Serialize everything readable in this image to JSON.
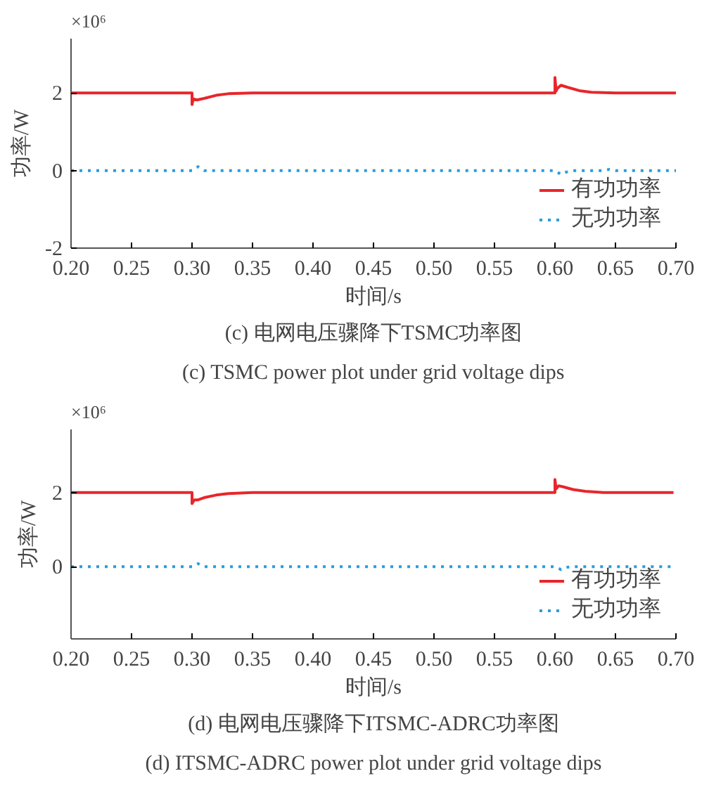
{
  "chart_data": [
    {
      "type": "line",
      "title": "(c) 电网电压骤降下TSMC功率图",
      "subtitle": "(c) TSMC power plot under grid voltage dips",
      "xlabel": "时间/s",
      "ylabel": "功率/W",
      "annotations": [
        "×10⁶"
      ],
      "xlim": [
        0.2,
        0.7
      ],
      "xticks": [
        {
          "value": 0.2,
          "label": "0.20"
        },
        {
          "value": 0.25,
          "label": "0.25"
        },
        {
          "value": 0.3,
          "label": "0.30"
        },
        {
          "value": 0.35,
          "label": "0.35"
        },
        {
          "value": 0.4,
          "label": "0.40"
        },
        {
          "value": 0.45,
          "label": "0.45"
        },
        {
          "value": 0.5,
          "label": "0.50"
        },
        {
          "value": 0.55,
          "label": "0.55"
        },
        {
          "value": 0.6,
          "label": "0.60"
        },
        {
          "value": 0.65,
          "label": "0.65"
        },
        {
          "value": 0.7,
          "label": "0.70"
        }
      ],
      "ylim": [
        -2,
        3.4
      ],
      "yticks": [
        -2,
        0,
        2
      ],
      "grid": false,
      "legend": "bottom right",
      "series": [
        {
          "name": "有功功率",
          "color": "#e8262b",
          "line_style": "solid",
          "x": [
            0.2,
            0.3,
            0.3,
            0.301,
            0.304,
            0.31,
            0.32,
            0.33,
            0.35,
            0.6,
            0.6,
            0.601,
            0.602,
            0.605,
            0.61,
            0.62,
            0.63,
            0.65,
            0.7
          ],
          "values": [
            2.0,
            2.0,
            1.7,
            1.85,
            1.82,
            1.86,
            1.94,
            1.98,
            2.0,
            2.0,
            2.4,
            2.05,
            2.12,
            2.2,
            2.15,
            2.06,
            2.02,
            2.0,
            2.0
          ]
        },
        {
          "name": "无功功率",
          "color": "#2a9ddd",
          "line_style": "dotted",
          "x": [
            0.2,
            0.3,
            0.305,
            0.31,
            0.6,
            0.605,
            0.608,
            0.615,
            0.64,
            0.645,
            0.65,
            0.7
          ],
          "values": [
            0,
            0,
            0.1,
            0,
            0,
            -0.1,
            -0.05,
            0,
            0,
            0.03,
            0,
            0
          ]
        }
      ]
    },
    {
      "type": "line",
      "title": "(d) 电网电压骤降下ITSMC-ADRC功率图",
      "subtitle": "(d) ITSMC-ADRC power plot under grid voltage dips",
      "xlabel": "时间/s",
      "ylabel": "功率/W",
      "annotations": [
        "×10⁶"
      ],
      "xlim": [
        0.2,
        0.7
      ],
      "xticks": [
        {
          "value": 0.2,
          "label": "0.20"
        },
        {
          "value": 0.25,
          "label": "0.25"
        },
        {
          "value": 0.3,
          "label": "0.30"
        },
        {
          "value": 0.35,
          "label": "0.35"
        },
        {
          "value": 0.4,
          "label": "0.40"
        },
        {
          "value": 0.45,
          "label": "0.45"
        },
        {
          "value": 0.5,
          "label": "0.50"
        },
        {
          "value": 0.55,
          "label": "0.55"
        },
        {
          "value": 0.6,
          "label": "0.60"
        },
        {
          "value": 0.65,
          "label": "0.65"
        },
        {
          "value": 0.7,
          "label": "0.70"
        }
      ],
      "ylim": [
        -1.95,
        3.7
      ],
      "yticks": [
        0,
        2
      ],
      "grid": false,
      "legend": "bottom right",
      "series": [
        {
          "name": "有功功率",
          "color": "#e8262b",
          "line_style": "solid",
          "x": [
            0.2,
            0.3,
            0.3,
            0.302,
            0.305,
            0.31,
            0.32,
            0.33,
            0.35,
            0.6,
            0.6,
            0.601,
            0.603,
            0.607,
            0.615,
            0.625,
            0.64,
            0.698
          ],
          "values": [
            2.0,
            2.0,
            1.7,
            1.8,
            1.8,
            1.86,
            1.93,
            1.97,
            2.0,
            2.0,
            2.35,
            2.1,
            2.18,
            2.15,
            2.08,
            2.03,
            2.0,
            2.0
          ]
        },
        {
          "name": "无功功率",
          "color": "#2a9ddd",
          "line_style": "dotted",
          "x": [
            0.2,
            0.3,
            0.305,
            0.31,
            0.6,
            0.605,
            0.609,
            0.615,
            0.698
          ],
          "values": [
            0,
            0,
            0.08,
            0,
            0,
            -0.08,
            -0.02,
            0,
            0
          ]
        }
      ]
    }
  ]
}
